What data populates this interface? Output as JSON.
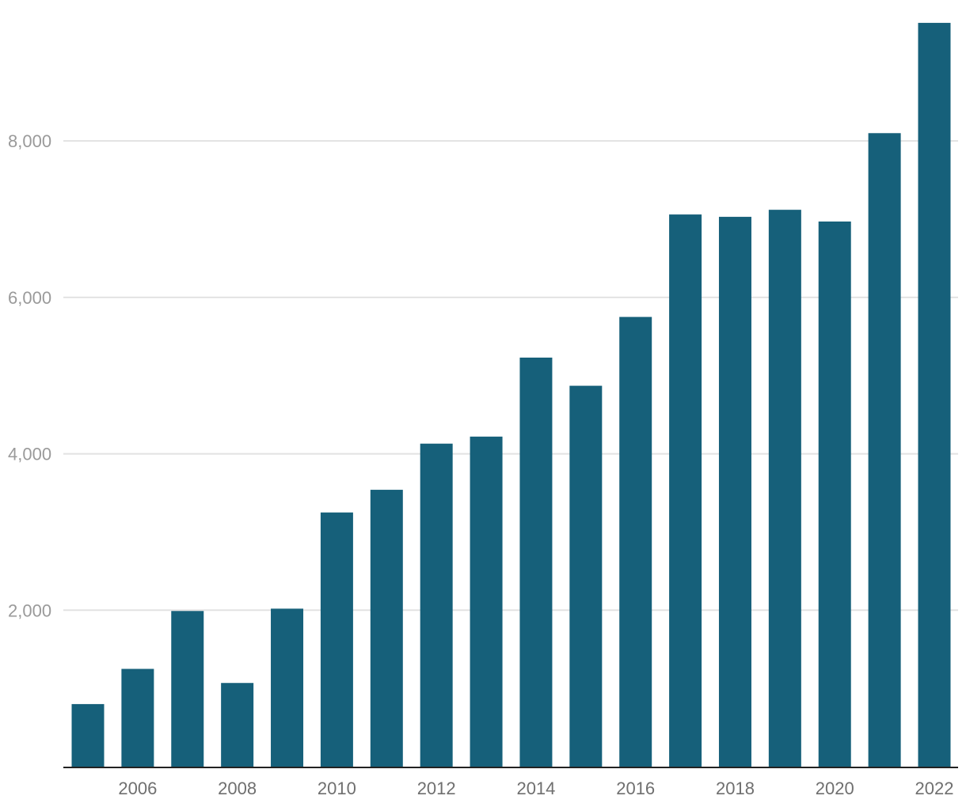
{
  "chart_data": {
    "type": "bar",
    "categories": [
      "2005",
      "2006",
      "2007",
      "2008",
      "2009",
      "2010",
      "2011",
      "2012",
      "2013",
      "2014",
      "2015",
      "2016",
      "2017",
      "2018",
      "2019",
      "2020",
      "2021",
      "2022"
    ],
    "values": [
      800,
      1250,
      1990,
      1070,
      2020,
      3250,
      3540,
      4130,
      4220,
      5230,
      4870,
      5750,
      7060,
      7030,
      7120,
      6970,
      8100,
      9510
    ],
    "xtick_labels": [
      "2006",
      "2008",
      "2010",
      "2012",
      "2014",
      "2016",
      "2018",
      "2020",
      "2022"
    ],
    "yticks": [
      2000,
      4000,
      6000,
      8000
    ],
    "ytick_labels": [
      "2,000",
      "4,000",
      "6,000",
      "8,000"
    ],
    "ylim": [
      0,
      9600
    ],
    "grid": true,
    "bar_color": "#16607a",
    "grid_color": "#e2e2e2",
    "axis_color": "#222222"
  }
}
